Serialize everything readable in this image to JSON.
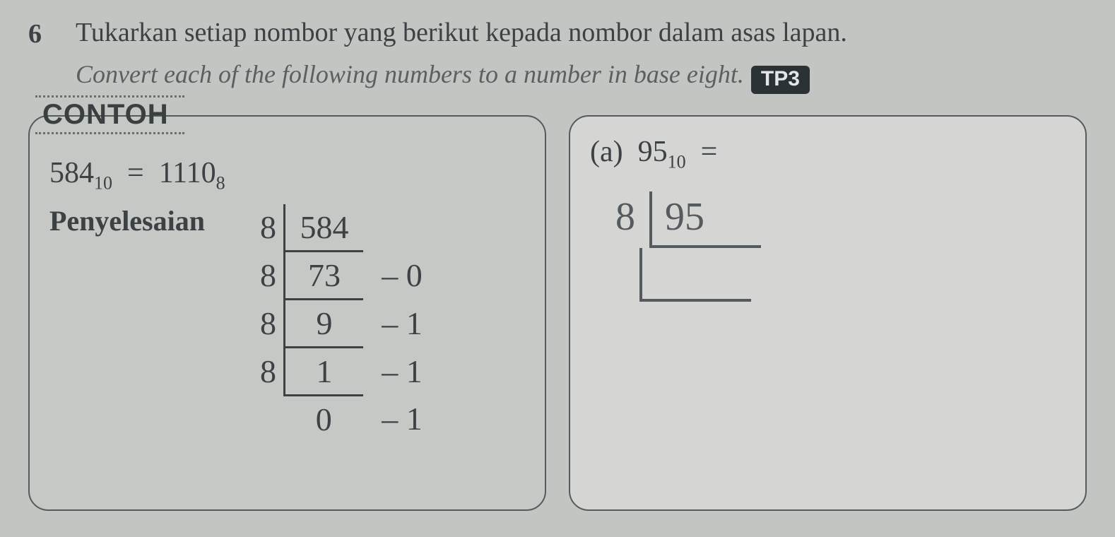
{
  "colors": {
    "page_bg": "#c3c5c2",
    "text_dark": "#3c4144",
    "text_mid": "#565b5d",
    "text_italic": "#5a5f61",
    "card_border": "#555a5c",
    "card_bg_left": "#c6c8c5",
    "card_bg_right": "#d5d6d4",
    "contoh_text": "#3a4042",
    "contoh_dots": "#6a6e70",
    "tp_bg": "#2b3236",
    "tp_text": "#e4e6e5",
    "ladder_line": "#3c4144",
    "hand_ink": "#545a5e"
  },
  "fonts": {
    "q_num_size": 38,
    "q_text_size": 38,
    "q_en_size": 36,
    "tp_size": 30,
    "contoh_size": 40,
    "eq_size": 42,
    "label_size": 40,
    "ladder_size": 46,
    "part_label_size": 42,
    "hand_size": 56
  },
  "question": {
    "number": "6",
    "ms": "Tukarkan setiap nombor yang berikut kepada nombor dalam asas lapan.",
    "en": "Convert each of the following numbers to a number in base eight.",
    "tp": "TP3"
  },
  "example": {
    "tab": "CONTOH",
    "lhs_val": "584",
    "lhs_base": "10",
    "rhs_val": "1110",
    "rhs_base": "8",
    "solution_label": "Penyelesaian",
    "ladder": {
      "divisor": "8",
      "line_color": "#3c4144",
      "rows": [
        {
          "quotient": "584",
          "remainder": ""
        },
        {
          "quotient": "73",
          "remainder": "– 0"
        },
        {
          "quotient": "9",
          "remainder": "– 1"
        },
        {
          "quotient": "1",
          "remainder": "– 1"
        },
        {
          "quotient": "0",
          "remainder": "– 1"
        }
      ]
    }
  },
  "part_a": {
    "label_prefix": "(a)",
    "val": "95",
    "base": "10",
    "eq": "=",
    "hand_divisor": "8",
    "hand_dividend": "95"
  }
}
